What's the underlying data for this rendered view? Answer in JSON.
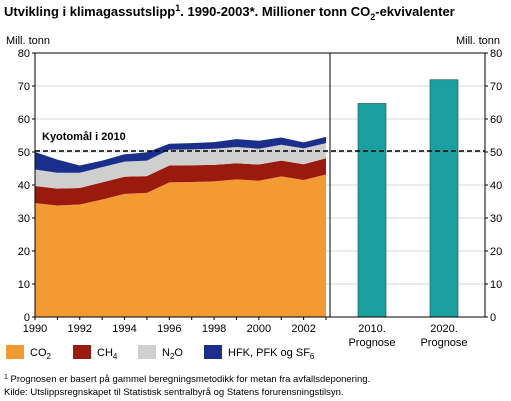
{
  "chart_data": {
    "type": "area",
    "title_main": "Utvikling i klimagassutslipp",
    "title_sup": "1",
    "title_rest": ". 1990-2003*. Millioner tonn CO",
    "title_sub": "2",
    "title_end": "-ekvivalenter",
    "ylabel_left": "Mill. tonn",
    "ylabel_right": "Mill. tonn",
    "ylim": [
      0,
      80
    ],
    "yticks": [
      "0",
      "10",
      "20",
      "30",
      "40",
      "50",
      "60",
      "70",
      "80"
    ],
    "x": [
      1990,
      1991,
      1992,
      1993,
      1994,
      1995,
      1996,
      1997,
      1998,
      1999,
      2000,
      2001,
      2002,
      2003
    ],
    "xticks": [
      "1990",
      "1992",
      "1994",
      "1996",
      "1998",
      "2000",
      "2002"
    ],
    "stacked": true,
    "series": [
      {
        "key": "co2",
        "name": "CO",
        "name_sub": "2",
        "color": "#f39a33",
        "values": [
          34.5,
          33.8,
          34.1,
          35.6,
          37.3,
          37.6,
          40.8,
          40.9,
          41.1,
          41.7,
          41.3,
          42.6,
          41.5,
          43.2
        ]
      },
      {
        "key": "ch4",
        "name": "CH",
        "name_sub": "4",
        "color": "#9b1a0e",
        "values": [
          5.2,
          5.1,
          5.0,
          5.2,
          5.2,
          5.1,
          5.1,
          5.1,
          5.0,
          4.9,
          4.9,
          4.8,
          4.8,
          4.9
        ]
      },
      {
        "key": "n2o",
        "name": "N",
        "name_sub": "2",
        "name_end": "O",
        "color": "#cfcfcf",
        "values": [
          5.0,
          4.8,
          4.6,
          4.6,
          4.6,
          4.7,
          4.8,
          4.8,
          4.9,
          4.9,
          4.8,
          4.8,
          4.8,
          4.6
        ]
      },
      {
        "key": "hfk",
        "name": "HFK, PFK og SF",
        "name_sub": "6",
        "color": "#1a2f8c",
        "values": [
          5.3,
          4.0,
          2.2,
          2.0,
          2.2,
          2.5,
          1.8,
          1.9,
          2.0,
          2.4,
          2.4,
          2.2,
          1.8,
          1.9
        ]
      }
    ],
    "kyoto": {
      "label": "Kyotomål i 2010",
      "value": 50.3
    },
    "forecast": {
      "color": "#1aa0a0",
      "bars": [
        {
          "label_line1": "2010.",
          "label_line2": "Prognose",
          "value": 64.7
        },
        {
          "label_line1": "2020.",
          "label_line2": "Prognose",
          "value": 71.9
        }
      ]
    },
    "grid": true
  },
  "footnote": {
    "sup": "1",
    "text": " Prognosen er basert på gammel beregningsmetodikk for metan fra avfallsdeponering.",
    "source": "Kilde: Utslippsregnskapet til Statistisk sentralbyrå og Statens forurensningstilsyn."
  }
}
